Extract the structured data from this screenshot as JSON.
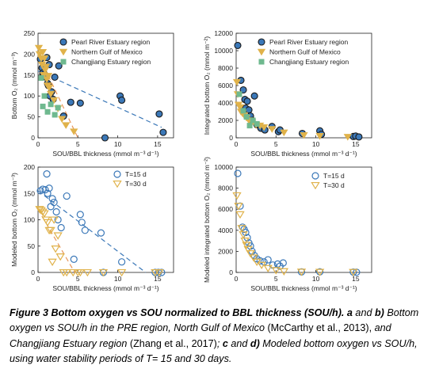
{
  "chart_data": [
    {
      "type": "scatter",
      "panel": "a",
      "xlabel": "SOU/BBL thickness (mmol m⁻³ d⁻¹)",
      "ylabel": "Bottom O₂ (mmol m⁻³)",
      "xlim": [
        0,
        17
      ],
      "ylim": [
        0,
        250
      ],
      "xticks": [
        "0",
        "5",
        "10",
        "15"
      ],
      "yticks": [
        "0",
        "50",
        "100",
        "150",
        "200",
        "250"
      ],
      "legend": "top-right",
      "series": [
        {
          "name": "Pearl River Estuary region",
          "marker": "circle",
          "color": "#3b78b8",
          "x": [
            0.3,
            0.5,
            0.6,
            0.8,
            1.0,
            1.2,
            1.3,
            1.5,
            1.7,
            1.9,
            2.1,
            1.1,
            1.4,
            2.6,
            4.1,
            3.2,
            5.3,
            10.3,
            10.5,
            15.2,
            15.7,
            8.4
          ],
          "y": [
            188,
            167,
            155,
            152,
            145,
            130,
            125,
            100,
            110,
            92,
            145,
            192,
            175,
            172,
            85,
            52,
            83,
            100,
            90,
            57,
            13,
            0
          ]
        },
        {
          "name": "Northern Gulf of Mexico",
          "marker": "triangle-down",
          "color": "#e0b24a",
          "x": [
            0.1,
            0.2,
            0.4,
            0.5,
            0.6,
            0.7,
            0.8,
            0.9,
            1.0,
            1.1,
            1.2,
            1.3,
            1.4,
            1.6,
            2.0,
            2.5,
            3.0,
            3.5,
            4.5
          ],
          "y": [
            215,
            200,
            190,
            175,
            205,
            150,
            190,
            162,
            170,
            140,
            125,
            148,
            120,
            105,
            90,
            70,
            45,
            30,
            15
          ]
        },
        {
          "name": "Changjiang Estuary region",
          "marker": "square",
          "color": "#6fb98f",
          "x": [
            0.4,
            0.6,
            0.8,
            1.2,
            1.6,
            2.1,
            2.5
          ],
          "y": [
            143,
            75,
            100,
            62,
            80,
            55,
            72
          ]
        }
      ],
      "fit_lines": [
        {
          "color": "#3b78b8",
          "style": "dashed",
          "x": [
            0,
            15.5
          ],
          "y": [
            160,
            25
          ]
        },
        {
          "color": "#e8965a",
          "style": "dashed",
          "x": [
            0,
            5.0
          ],
          "y": [
            200,
            0
          ]
        }
      ]
    },
    {
      "type": "scatter",
      "panel": "b",
      "xlabel": "SOU/BBL thickness (mmol m⁻³ d⁻¹)",
      "ylabel": "Integrated bottom O₂ (mmol m⁻²)",
      "xlim": [
        0,
        17
      ],
      "ylim": [
        0,
        12000
      ],
      "xticks": [
        "0",
        "5",
        "10",
        "15"
      ],
      "yticks": [
        "0",
        "2000",
        "4000",
        "6000",
        "8000",
        "10000",
        "12000"
      ],
      "legend": "top-right",
      "series": [
        {
          "name": "Pearl River Estuary region",
          "marker": "circle",
          "color": "#3b78b8",
          "x": [
            0.2,
            0.6,
            0.9,
            1.1,
            1.2,
            1.4,
            1.6,
            1.8,
            2.0,
            2.3,
            2.6,
            3.1,
            3.6,
            4.5,
            5.3,
            5.5,
            8.3,
            10.5,
            10.7,
            14.7,
            15.0,
            15.4
          ],
          "y": [
            10600,
            6600,
            5500,
            4400,
            3400,
            4200,
            3200,
            2500,
            2000,
            4800,
            1500,
            1100,
            900,
            1300,
            700,
            900,
            500,
            800,
            400,
            150,
            200,
            100
          ]
        },
        {
          "name": "Northern Gulf of Mexico",
          "marker": "triangle-down",
          "color": "#e0b24a",
          "x": [
            0.1,
            0.2,
            0.3,
            0.5,
            0.6,
            0.8,
            1.0,
            1.3,
            1.6,
            2.0,
            2.5,
            3.0,
            3.5,
            4.5,
            6.0,
            8.5,
            10.5,
            14.0
          ],
          "y": [
            6400,
            5000,
            3800,
            3500,
            3000,
            2800,
            2600,
            2300,
            2000,
            1800,
            1500,
            1400,
            1200,
            1000,
            600,
            300,
            200,
            100
          ]
        },
        {
          "name": "Changjiang Estuary region",
          "marker": "square",
          "color": "#6fb98f",
          "x": [
            0.4,
            0.9,
            1.3,
            1.7,
            2.1,
            2.6
          ],
          "y": [
            5000,
            3100,
            2400,
            1400,
            2000,
            1600
          ]
        }
      ]
    },
    {
      "type": "scatter",
      "panel": "c",
      "xlabel": "SOU/BBL thickness (mmol m⁻³ d⁻¹)",
      "ylabel": "Modeled bottom O₂ (mmol m⁻³)",
      "xlim": [
        0,
        17
      ],
      "ylim": [
        0,
        200
      ],
      "xticks": [
        "0",
        "5",
        "10",
        "15"
      ],
      "yticks": [
        "0",
        "50",
        "100",
        "150",
        "200"
      ],
      "legend": "top-right",
      "series": [
        {
          "name": "T=15 d",
          "marker": "circle-open",
          "color": "#3b78b8",
          "x": [
            0.3,
            0.6,
            0.9,
            1.1,
            1.2,
            1.4,
            1.6,
            1.8,
            2.0,
            2.3,
            2.5,
            2.9,
            3.6,
            4.5,
            5.3,
            5.5,
            5.9,
            7.9,
            8.2,
            10.5,
            14.7,
            15.1,
            15.5
          ],
          "y": [
            155,
            158,
            157,
            187,
            150,
            160,
            125,
            140,
            133,
            115,
            100,
            85,
            145,
            25,
            110,
            95,
            80,
            75,
            0,
            20,
            0,
            0,
            0
          ]
        },
        {
          "name": "T=30 d",
          "marker": "triangle-down-open",
          "color": "#e0b24a",
          "x": [
            0.2,
            0.4,
            0.6,
            0.8,
            1.0,
            1.2,
            1.4,
            1.6,
            1.8,
            2.0,
            2.2,
            2.5,
            2.8,
            3.2,
            3.6,
            4.4,
            5.0,
            5.3,
            6.2,
            8.2,
            10.5,
            14.7,
            15.2
          ],
          "y": [
            120,
            118,
            115,
            112,
            100,
            95,
            80,
            80,
            20,
            100,
            45,
            70,
            30,
            0,
            0,
            0,
            0,
            0,
            0,
            0,
            0,
            0,
            0
          ]
        }
      ],
      "fit_lines": [
        {
          "color": "#3b78b8",
          "style": "dashed",
          "x": [
            0,
            13.5
          ],
          "y": [
            155,
            0
          ]
        },
        {
          "color": "#e8965a",
          "style": "dashed",
          "x": [
            0,
            4.6
          ],
          "y": [
            120,
            0
          ]
        }
      ]
    },
    {
      "type": "scatter",
      "panel": "d",
      "xlabel": "SOU/BBL thickness (mmol m⁻³ d⁻¹)",
      "ylabel": "Modeled integrated bottom O₂ (mmol m⁻²)",
      "xlim": [
        0,
        17
      ],
      "ylim": [
        0,
        10000
      ],
      "xticks": [
        "0",
        "5",
        "10",
        "15"
      ],
      "yticks": [
        "0",
        "2000",
        "4000",
        "6000",
        "8000",
        "10000"
      ],
      "legend": "top-right",
      "series": [
        {
          "name": "T=15 d",
          "marker": "circle-open",
          "color": "#3b78b8",
          "x": [
            0.2,
            0.5,
            0.8,
            1.0,
            1.2,
            1.4,
            1.6,
            1.8,
            2.0,
            2.3,
            2.6,
            3.0,
            3.5,
            4.0,
            4.6,
            5.2,
            5.5,
            5.9,
            8.2,
            10.5,
            14.7,
            15.1
          ],
          "y": [
            9400,
            6300,
            4300,
            4100,
            3800,
            3300,
            2800,
            2500,
            2000,
            1600,
            1300,
            1100,
            1000,
            1200,
            700,
            800,
            600,
            900,
            50,
            60,
            30,
            20
          ]
        },
        {
          "name": "T=30 d",
          "marker": "triangle-down-open",
          "color": "#e0b24a",
          "x": [
            0.1,
            0.3,
            0.5,
            0.7,
            0.9,
            1.1,
            1.3,
            1.5,
            1.8,
            2.2,
            2.6,
            3.2,
            4.0,
            5.0,
            6.0,
            8.2,
            10.5,
            14.7
          ],
          "y": [
            7300,
            6300,
            5500,
            4200,
            3600,
            3000,
            2600,
            2200,
            1800,
            1400,
            1000,
            700,
            400,
            200,
            100,
            50,
            30,
            20
          ]
        }
      ]
    }
  ],
  "caption": {
    "line1_bold": "Figure 3 Bottom oxygen vs SOU normalized to BBL thickness (SOU/h).",
    "line1_a": "a",
    "line1_and": " and ",
    "line1_b": "b)",
    "line2_a": " Bottom oxygen vs SOU/h in the PRE region, North Gulf of Mexico ",
    "cite1": "(McCarthy et al., 2013),",
    "line2_b": " and Changjiang Estuary region ",
    "cite2": "(Zhang et al., 2017)",
    "line3_a": "; ",
    "c_bold": "c",
    "line3_and": " and ",
    "d_bold": "d)",
    "line3_b": " Modeled bottom oxygen vs SOU/h, using water stability periods of T= 15 and 30 days."
  }
}
